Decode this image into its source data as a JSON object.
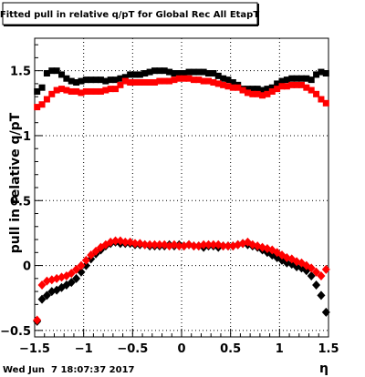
{
  "chart_data": {
    "type": "scatter",
    "title": "Fitted pull in relative q/pT for Global Rec All EtapT",
    "xlabel": "η",
    "ylabel": "pull in relative q/pT",
    "footer_date": "Wed Jun  7 18:07:37 2017",
    "xlim": [
      -1.5,
      1.5
    ],
    "ylim": [
      -0.55,
      1.75
    ],
    "x_ticks": [
      -1.5,
      -1,
      -0.5,
      0,
      0.5,
      1,
      1.5
    ],
    "x_tick_labels": [
      "−1.5",
      "−1",
      "−0.5",
      "0",
      "0.5",
      "1",
      "1.5"
    ],
    "y_ticks": [
      -0.5,
      0,
      0.5,
      1,
      1.5
    ],
    "y_tick_labels": [
      "−0.5",
      "0",
      "0.5",
      "1",
      "1.5"
    ],
    "grid": true,
    "series": [
      {
        "marker": "square",
        "color": "#000000",
        "x": [
          -1.475,
          -1.425,
          -1.375,
          -1.325,
          -1.275,
          -1.225,
          -1.175,
          -1.125,
          -1.075,
          -1.025,
          -0.975,
          -0.925,
          -0.875,
          -0.825,
          -0.775,
          -0.725,
          -0.675,
          -0.625,
          -0.575,
          -0.525,
          -0.475,
          -0.425,
          -0.375,
          -0.325,
          -0.275,
          -0.225,
          -0.175,
          -0.125,
          -0.075,
          -0.025,
          0.025,
          0.075,
          0.125,
          0.175,
          0.225,
          0.275,
          0.325,
          0.375,
          0.425,
          0.475,
          0.525,
          0.575,
          0.625,
          0.675,
          0.725,
          0.775,
          0.825,
          0.875,
          0.925,
          0.975,
          1.025,
          1.075,
          1.125,
          1.175,
          1.225,
          1.275,
          1.325,
          1.375,
          1.425,
          1.475
        ],
        "values": [
          1.34,
          1.37,
          1.48,
          1.5,
          1.5,
          1.47,
          1.44,
          1.42,
          1.41,
          1.42,
          1.43,
          1.43,
          1.43,
          1.43,
          1.42,
          1.43,
          1.43,
          1.44,
          1.45,
          1.47,
          1.47,
          1.47,
          1.48,
          1.49,
          1.5,
          1.5,
          1.5,
          1.49,
          1.48,
          1.48,
          1.48,
          1.49,
          1.49,
          1.49,
          1.49,
          1.48,
          1.48,
          1.46,
          1.44,
          1.43,
          1.41,
          1.39,
          1.36,
          1.36,
          1.36,
          1.36,
          1.35,
          1.36,
          1.37,
          1.4,
          1.42,
          1.43,
          1.44,
          1.44,
          1.44,
          1.44,
          1.43,
          1.47,
          1.49,
          1.48
        ]
      },
      {
        "marker": "square",
        "color": "#ff0000",
        "x": [
          -1.475,
          -1.425,
          -1.375,
          -1.325,
          -1.275,
          -1.225,
          -1.175,
          -1.125,
          -1.075,
          -1.025,
          -0.975,
          -0.925,
          -0.875,
          -0.825,
          -0.775,
          -0.725,
          -0.675,
          -0.625,
          -0.575,
          -0.525,
          -0.475,
          -0.425,
          -0.375,
          -0.325,
          -0.275,
          -0.225,
          -0.175,
          -0.125,
          -0.075,
          -0.025,
          0.025,
          0.075,
          0.125,
          0.175,
          0.225,
          0.275,
          0.325,
          0.375,
          0.425,
          0.475,
          0.525,
          0.575,
          0.625,
          0.675,
          0.725,
          0.775,
          0.825,
          0.875,
          0.925,
          0.975,
          1.025,
          1.075,
          1.125,
          1.175,
          1.225,
          1.275,
          1.325,
          1.375,
          1.425,
          1.475
        ],
        "values": [
          1.22,
          1.24,
          1.28,
          1.32,
          1.35,
          1.36,
          1.35,
          1.34,
          1.34,
          1.33,
          1.34,
          1.34,
          1.34,
          1.34,
          1.35,
          1.36,
          1.36,
          1.39,
          1.42,
          1.41,
          1.41,
          1.41,
          1.41,
          1.41,
          1.41,
          1.42,
          1.42,
          1.42,
          1.43,
          1.44,
          1.44,
          1.44,
          1.43,
          1.43,
          1.42,
          1.42,
          1.41,
          1.4,
          1.39,
          1.38,
          1.37,
          1.37,
          1.35,
          1.33,
          1.32,
          1.32,
          1.31,
          1.32,
          1.34,
          1.36,
          1.38,
          1.38,
          1.39,
          1.39,
          1.39,
          1.37,
          1.35,
          1.32,
          1.28,
          1.25
        ]
      },
      {
        "marker": "diamond",
        "color": "#000000",
        "x": [
          -1.475,
          -1.425,
          -1.375,
          -1.325,
          -1.275,
          -1.225,
          -1.175,
          -1.125,
          -1.075,
          -1.025,
          -0.975,
          -0.925,
          -0.875,
          -0.825,
          -0.775,
          -0.725,
          -0.675,
          -0.625,
          -0.575,
          -0.525,
          -0.475,
          -0.425,
          -0.375,
          -0.325,
          -0.275,
          -0.225,
          -0.175,
          -0.125,
          -0.075,
          -0.025,
          0.025,
          0.075,
          0.125,
          0.175,
          0.225,
          0.275,
          0.325,
          0.375,
          0.425,
          0.475,
          0.525,
          0.575,
          0.625,
          0.675,
          0.725,
          0.775,
          0.825,
          0.875,
          0.925,
          0.975,
          1.025,
          1.075,
          1.125,
          1.175,
          1.225,
          1.275,
          1.325,
          1.375,
          1.425,
          1.475
        ],
        "values": [
          -0.43,
          -0.26,
          -0.23,
          -0.2,
          -0.19,
          -0.17,
          -0.15,
          -0.13,
          -0.1,
          -0.05,
          0.0,
          0.05,
          0.09,
          0.12,
          0.15,
          0.17,
          0.18,
          0.17,
          0.17,
          0.17,
          0.16,
          0.16,
          0.16,
          0.15,
          0.15,
          0.15,
          0.15,
          0.16,
          0.15,
          0.16,
          0.15,
          0.16,
          0.15,
          0.15,
          0.14,
          0.15,
          0.15,
          0.14,
          0.15,
          0.15,
          0.15,
          0.16,
          0.17,
          0.16,
          0.15,
          0.14,
          0.12,
          0.1,
          0.08,
          0.06,
          0.04,
          0.02,
          0.01,
          -0.01,
          -0.02,
          -0.04,
          -0.08,
          -0.15,
          -0.23,
          -0.36
        ]
      },
      {
        "marker": "diamond",
        "color": "#ff0000",
        "x": [
          -1.475,
          -1.425,
          -1.375,
          -1.325,
          -1.275,
          -1.225,
          -1.175,
          -1.125,
          -1.075,
          -1.025,
          -0.975,
          -0.925,
          -0.875,
          -0.825,
          -0.775,
          -0.725,
          -0.675,
          -0.625,
          -0.575,
          -0.525,
          -0.475,
          -0.425,
          -0.375,
          -0.325,
          -0.275,
          -0.225,
          -0.175,
          -0.125,
          -0.075,
          -0.025,
          0.025,
          0.075,
          0.125,
          0.175,
          0.225,
          0.275,
          0.325,
          0.375,
          0.425,
          0.475,
          0.525,
          0.575,
          0.625,
          0.675,
          0.725,
          0.775,
          0.825,
          0.875,
          0.925,
          0.975,
          1.025,
          1.075,
          1.125,
          1.175,
          1.225,
          1.275,
          1.325,
          1.375,
          1.425,
          1.475
        ],
        "values": [
          -0.42,
          -0.15,
          -0.12,
          -0.11,
          -0.1,
          -0.09,
          -0.08,
          -0.06,
          -0.03,
          0.0,
          0.04,
          0.08,
          0.11,
          0.14,
          0.16,
          0.18,
          0.19,
          0.19,
          0.18,
          0.18,
          0.17,
          0.17,
          0.16,
          0.16,
          0.16,
          0.16,
          0.16,
          0.15,
          0.16,
          0.15,
          0.15,
          0.16,
          0.15,
          0.15,
          0.16,
          0.16,
          0.16,
          0.16,
          0.15,
          0.15,
          0.15,
          0.16,
          0.17,
          0.18,
          0.16,
          0.15,
          0.14,
          0.13,
          0.12,
          0.1,
          0.08,
          0.06,
          0.05,
          0.03,
          0.02,
          0.0,
          -0.02,
          -0.05,
          -0.08,
          -0.03
        ]
      }
    ]
  }
}
